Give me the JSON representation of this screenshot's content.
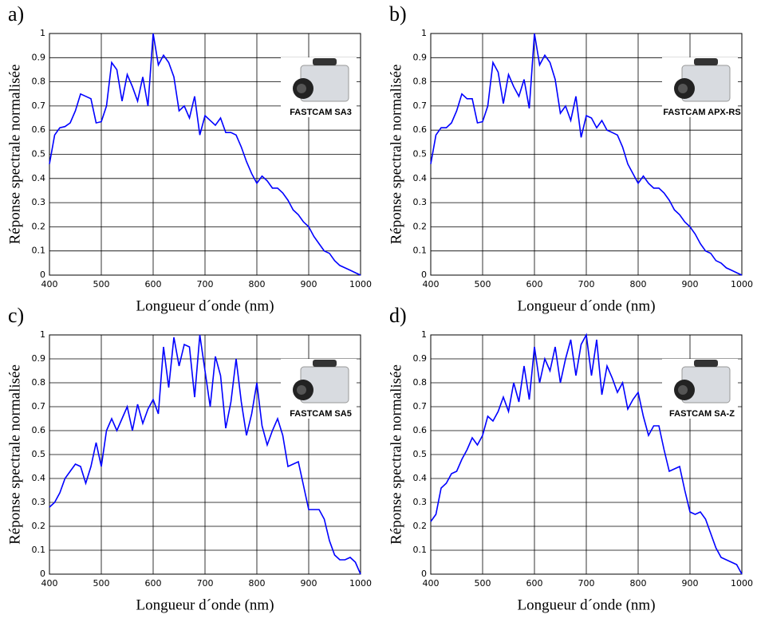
{
  "chart_data": [
    {
      "type": "line",
      "panel": "a)",
      "xlabel": "Longueur d´onde (nm)",
      "ylabel": "Réponse spectrale normalisée",
      "annotation": "FASTCAM SA3",
      "x": [
        400,
        410,
        420,
        430,
        440,
        450,
        460,
        470,
        480,
        490,
        500,
        510,
        520,
        530,
        540,
        550,
        560,
        570,
        580,
        590,
        600,
        610,
        620,
        630,
        640,
        650,
        660,
        670,
        680,
        690,
        700,
        710,
        720,
        730,
        740,
        750,
        760,
        770,
        780,
        790,
        800,
        810,
        820,
        830,
        840,
        850,
        860,
        870,
        880,
        890,
        900,
        910,
        920,
        930,
        940,
        950,
        960,
        970,
        980,
        990,
        1000
      ],
      "series": [
        {
          "color": "#0000ff",
          "values": [
            0.46,
            0.58,
            0.61,
            0.615,
            0.63,
            0.68,
            0.75,
            0.74,
            0.73,
            0.63,
            0.635,
            0.7,
            0.88,
            0.85,
            0.72,
            0.83,
            0.78,
            0.72,
            0.82,
            0.7,
            1.0,
            0.87,
            0.91,
            0.88,
            0.82,
            0.68,
            0.7,
            0.65,
            0.74,
            0.58,
            0.66,
            0.64,
            0.62,
            0.65,
            0.59,
            0.59,
            0.58,
            0.53,
            0.47,
            0.42,
            0.38,
            0.41,
            0.39,
            0.36,
            0.36,
            0.34,
            0.31,
            0.27,
            0.25,
            0.22,
            0.2,
            0.16,
            0.13,
            0.1,
            0.09,
            0.06,
            0.04,
            0.03,
            0.02,
            0.01,
            0.0
          ]
        }
      ],
      "xlim": [
        400,
        1000
      ],
      "ylim": [
        0,
        1
      ],
      "xticks": [
        400,
        500,
        600,
        700,
        800,
        900,
        1000
      ],
      "yticks": [
        0,
        0.1,
        0.2,
        0.3,
        0.4,
        0.5,
        0.6,
        0.7,
        0.8,
        0.9,
        1
      ],
      "grid": true
    },
    {
      "type": "line",
      "panel": "b)",
      "xlabel": "Longueur d´onde (nm)",
      "ylabel": "Réponse spectrale normalisée",
      "annotation": "FASTCAM APX-RS",
      "x": [
        400,
        410,
        420,
        430,
        440,
        450,
        460,
        470,
        480,
        490,
        500,
        510,
        520,
        530,
        540,
        550,
        560,
        570,
        580,
        590,
        600,
        610,
        620,
        630,
        640,
        650,
        660,
        670,
        680,
        690,
        700,
        710,
        720,
        730,
        740,
        750,
        760,
        770,
        780,
        790,
        800,
        810,
        820,
        830,
        840,
        850,
        860,
        870,
        880,
        890,
        900,
        910,
        920,
        930,
        940,
        950,
        960,
        970,
        980,
        990,
        1000
      ],
      "series": [
        {
          "color": "#0000ff",
          "values": [
            0.46,
            0.58,
            0.61,
            0.61,
            0.63,
            0.68,
            0.75,
            0.73,
            0.73,
            0.63,
            0.635,
            0.7,
            0.88,
            0.84,
            0.71,
            0.83,
            0.78,
            0.74,
            0.81,
            0.69,
            1.0,
            0.87,
            0.91,
            0.88,
            0.81,
            0.67,
            0.7,
            0.64,
            0.74,
            0.57,
            0.66,
            0.65,
            0.61,
            0.64,
            0.6,
            0.59,
            0.58,
            0.53,
            0.46,
            0.42,
            0.38,
            0.41,
            0.38,
            0.36,
            0.36,
            0.34,
            0.31,
            0.27,
            0.25,
            0.22,
            0.2,
            0.17,
            0.13,
            0.1,
            0.09,
            0.06,
            0.05,
            0.03,
            0.02,
            0.01,
            0.0
          ]
        }
      ],
      "xlim": [
        400,
        1000
      ],
      "ylim": [
        0,
        1
      ],
      "xticks": [
        400,
        500,
        600,
        700,
        800,
        900,
        1000
      ],
      "yticks": [
        0,
        0.1,
        0.2,
        0.3,
        0.4,
        0.5,
        0.6,
        0.7,
        0.8,
        0.9,
        1
      ],
      "grid": true
    },
    {
      "type": "line",
      "panel": "c)",
      "xlabel": "Longueur d´onde (nm)",
      "ylabel": "Réponse spectrale normalisée",
      "annotation": "FASTCAM SA5",
      "x": [
        400,
        410,
        420,
        430,
        440,
        450,
        460,
        470,
        480,
        490,
        500,
        510,
        520,
        530,
        540,
        550,
        560,
        570,
        580,
        590,
        600,
        610,
        620,
        630,
        640,
        650,
        660,
        670,
        680,
        690,
        700,
        710,
        720,
        730,
        740,
        750,
        760,
        770,
        780,
        790,
        800,
        810,
        820,
        830,
        840,
        850,
        860,
        870,
        880,
        890,
        900,
        910,
        920,
        930,
        940,
        950,
        960,
        970,
        980,
        990,
        1000
      ],
      "series": [
        {
          "color": "#0000ff",
          "values": [
            0.28,
            0.3,
            0.34,
            0.4,
            0.43,
            0.46,
            0.45,
            0.38,
            0.45,
            0.55,
            0.45,
            0.6,
            0.65,
            0.6,
            0.65,
            0.7,
            0.6,
            0.71,
            0.63,
            0.69,
            0.73,
            0.67,
            0.95,
            0.78,
            0.99,
            0.87,
            0.96,
            0.95,
            0.74,
            1.0,
            0.85,
            0.7,
            0.91,
            0.83,
            0.61,
            0.72,
            0.9,
            0.72,
            0.58,
            0.67,
            0.8,
            0.62,
            0.54,
            0.6,
            0.65,
            0.58,
            0.45,
            0.46,
            0.47,
            0.37,
            0.27,
            0.27,
            0.27,
            0.23,
            0.14,
            0.08,
            0.06,
            0.06,
            0.07,
            0.05,
            0.0
          ]
        }
      ],
      "xlim": [
        400,
        1000
      ],
      "ylim": [
        0,
        1
      ],
      "xticks": [
        400,
        500,
        600,
        700,
        800,
        900,
        1000
      ],
      "yticks": [
        0,
        0.1,
        0.2,
        0.3,
        0.4,
        0.5,
        0.6,
        0.7,
        0.8,
        0.9,
        1
      ],
      "grid": true
    },
    {
      "type": "line",
      "panel": "d)",
      "xlabel": "Longueur d´onde (nm)",
      "ylabel": "Réponse spectrale normalisée",
      "annotation": "FASTCAM SA-Z",
      "x": [
        400,
        410,
        420,
        430,
        440,
        450,
        460,
        470,
        480,
        490,
        500,
        510,
        520,
        530,
        540,
        550,
        560,
        570,
        580,
        590,
        600,
        610,
        620,
        630,
        640,
        650,
        660,
        670,
        680,
        690,
        700,
        710,
        720,
        730,
        740,
        750,
        760,
        770,
        780,
        790,
        800,
        810,
        820,
        830,
        840,
        850,
        860,
        870,
        880,
        890,
        900,
        910,
        920,
        930,
        940,
        950,
        960,
        970,
        980,
        990,
        1000
      ],
      "series": [
        {
          "color": "#0000ff",
          "values": [
            0.22,
            0.25,
            0.36,
            0.38,
            0.42,
            0.43,
            0.48,
            0.52,
            0.57,
            0.54,
            0.58,
            0.66,
            0.64,
            0.68,
            0.74,
            0.68,
            0.8,
            0.72,
            0.87,
            0.73,
            0.95,
            0.8,
            0.9,
            0.85,
            0.95,
            0.8,
            0.9,
            0.98,
            0.83,
            0.96,
            1.0,
            0.83,
            0.98,
            0.75,
            0.87,
            0.82,
            0.76,
            0.8,
            0.69,
            0.73,
            0.76,
            0.66,
            0.58,
            0.62,
            0.62,
            0.52,
            0.43,
            0.44,
            0.45,
            0.35,
            0.26,
            0.25,
            0.26,
            0.23,
            0.17,
            0.11,
            0.07,
            0.06,
            0.05,
            0.04,
            0.0
          ]
        }
      ],
      "xlim": [
        400,
        1000
      ],
      "ylim": [
        0,
        1
      ],
      "xticks": [
        400,
        500,
        600,
        700,
        800,
        900,
        1000
      ],
      "yticks": [
        0,
        0.1,
        0.2,
        0.3,
        0.4,
        0.5,
        0.6,
        0.7,
        0.8,
        0.9,
        1
      ],
      "grid": true
    }
  ]
}
